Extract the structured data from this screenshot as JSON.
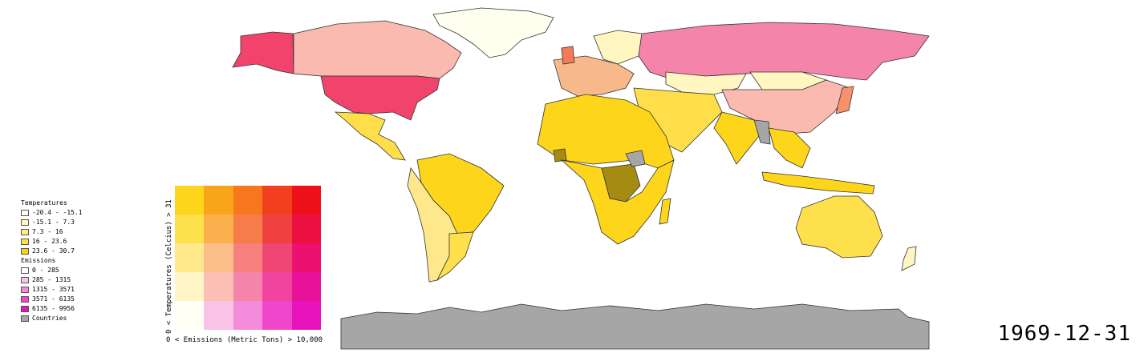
{
  "date": "1969-12-31",
  "legend": {
    "temp_title": "Temperatures",
    "temps": [
      {
        "label": "-20.4 - -15.1",
        "color": "#fffff0"
      },
      {
        "label": "-15.1 - 7.3",
        "color": "#fff6c2"
      },
      {
        "label": "7.3 - 16",
        "color": "#ffeb8a"
      },
      {
        "label": "16 - 23.6",
        "color": "#ffde4a"
      },
      {
        "label": "23.6 - 30.7",
        "color": "#f7d414"
      }
    ],
    "emis_title": "Emissions",
    "emissions": [
      {
        "label": "0 - 285",
        "color": "#ffffff"
      },
      {
        "label": "285 - 1315",
        "color": "#f9c2e6"
      },
      {
        "label": "1315 - 3571",
        "color": "#f48ad8"
      },
      {
        "label": "3571 - 6135",
        "color": "#ee48c8"
      },
      {
        "label": "6135 - 9956",
        "color": "#e612b6"
      }
    ],
    "countries_label": "Countries",
    "countries_color": "#a6a6a6"
  },
  "matrix": {
    "y_label": "0 < Temperatures (Celcius) > 31",
    "x_label": "0 < Emissions (Metric Tons) > 10,000",
    "colors": [
      [
        "#fdd51a",
        "#f9a51a",
        "#f7781c",
        "#f23f1e",
        "#ee1019"
      ],
      [
        "#fee04c",
        "#fbb04d",
        "#f67c4c",
        "#f14040",
        "#ec1040"
      ],
      [
        "#ffe88c",
        "#fbbd8a",
        "#f77f7e",
        "#f04673",
        "#ec1070"
      ],
      [
        "#fff5c6",
        "#fbbfb6",
        "#f584ab",
        "#f0449f",
        "#e8129a"
      ],
      [
        "#fffff4",
        "#f9c2e7",
        "#f58bdb",
        "#ef47cc",
        "#e813bc"
      ]
    ]
  }
}
